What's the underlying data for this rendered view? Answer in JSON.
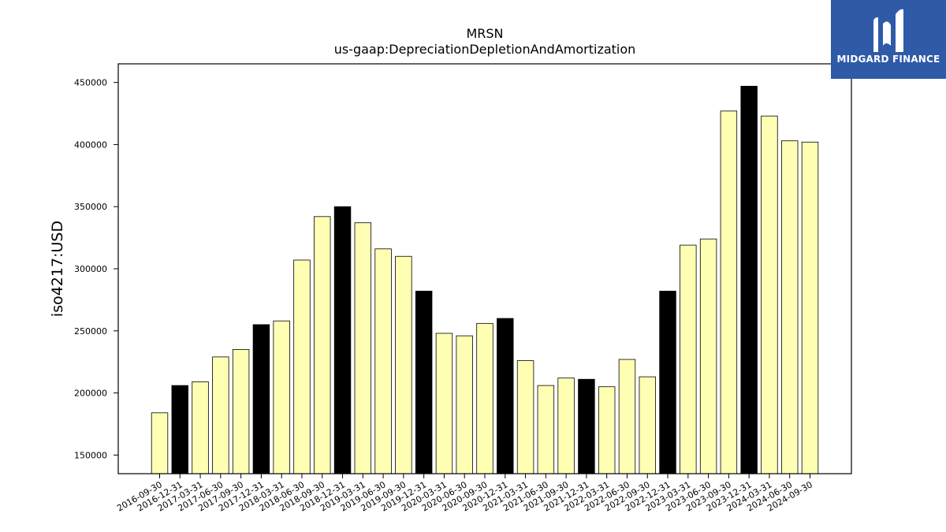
{
  "chart_data": {
    "type": "bar",
    "title": "MRSN",
    "subtitle": "us-gaap:DepreciationDepletionAndAmortization",
    "xlabel": "",
    "ylabel": "iso4217:USD",
    "ylim": [
      135000,
      465000
    ],
    "yticks": [
      150000,
      200000,
      250000,
      300000,
      350000,
      400000,
      450000
    ],
    "grid": false,
    "colors": {
      "quarter": "#ffffb3",
      "year_end": "#000000",
      "edge": "#000000"
    },
    "categories": [
      "2016-09-30",
      "2016-12-31",
      "2017-03-31",
      "2017-06-30",
      "2017-09-30",
      "2017-12-31",
      "2018-03-31",
      "2018-06-30",
      "2018-09-30",
      "2018-12-31",
      "2019-03-31",
      "2019-06-30",
      "2019-09-30",
      "2019-12-31",
      "2020-03-31",
      "2020-06-30",
      "2020-09-30",
      "2020-12-31",
      "2021-03-31",
      "2021-06-30",
      "2021-09-30",
      "2021-12-31",
      "2022-03-31",
      "2022-06-30",
      "2022-09-30",
      "2022-12-31",
      "2023-03-31",
      "2023-06-30",
      "2023-09-30",
      "2023-12-31",
      "2024-03-31",
      "2024-06-30",
      "2024-09-30"
    ],
    "values": [
      184000,
      206000,
      209000,
      229000,
      235000,
      255000,
      258000,
      307000,
      342000,
      350000,
      337000,
      316000,
      310000,
      282000,
      248000,
      246000,
      256000,
      260000,
      226000,
      206000,
      212000,
      211000,
      205000,
      227000,
      213000,
      282000,
      319000,
      324000,
      427000,
      447000,
      423000,
      403000,
      402000
    ]
  },
  "logo": {
    "text": "MIDGARD FINANCE",
    "icon": "midgard-logo-icon"
  }
}
